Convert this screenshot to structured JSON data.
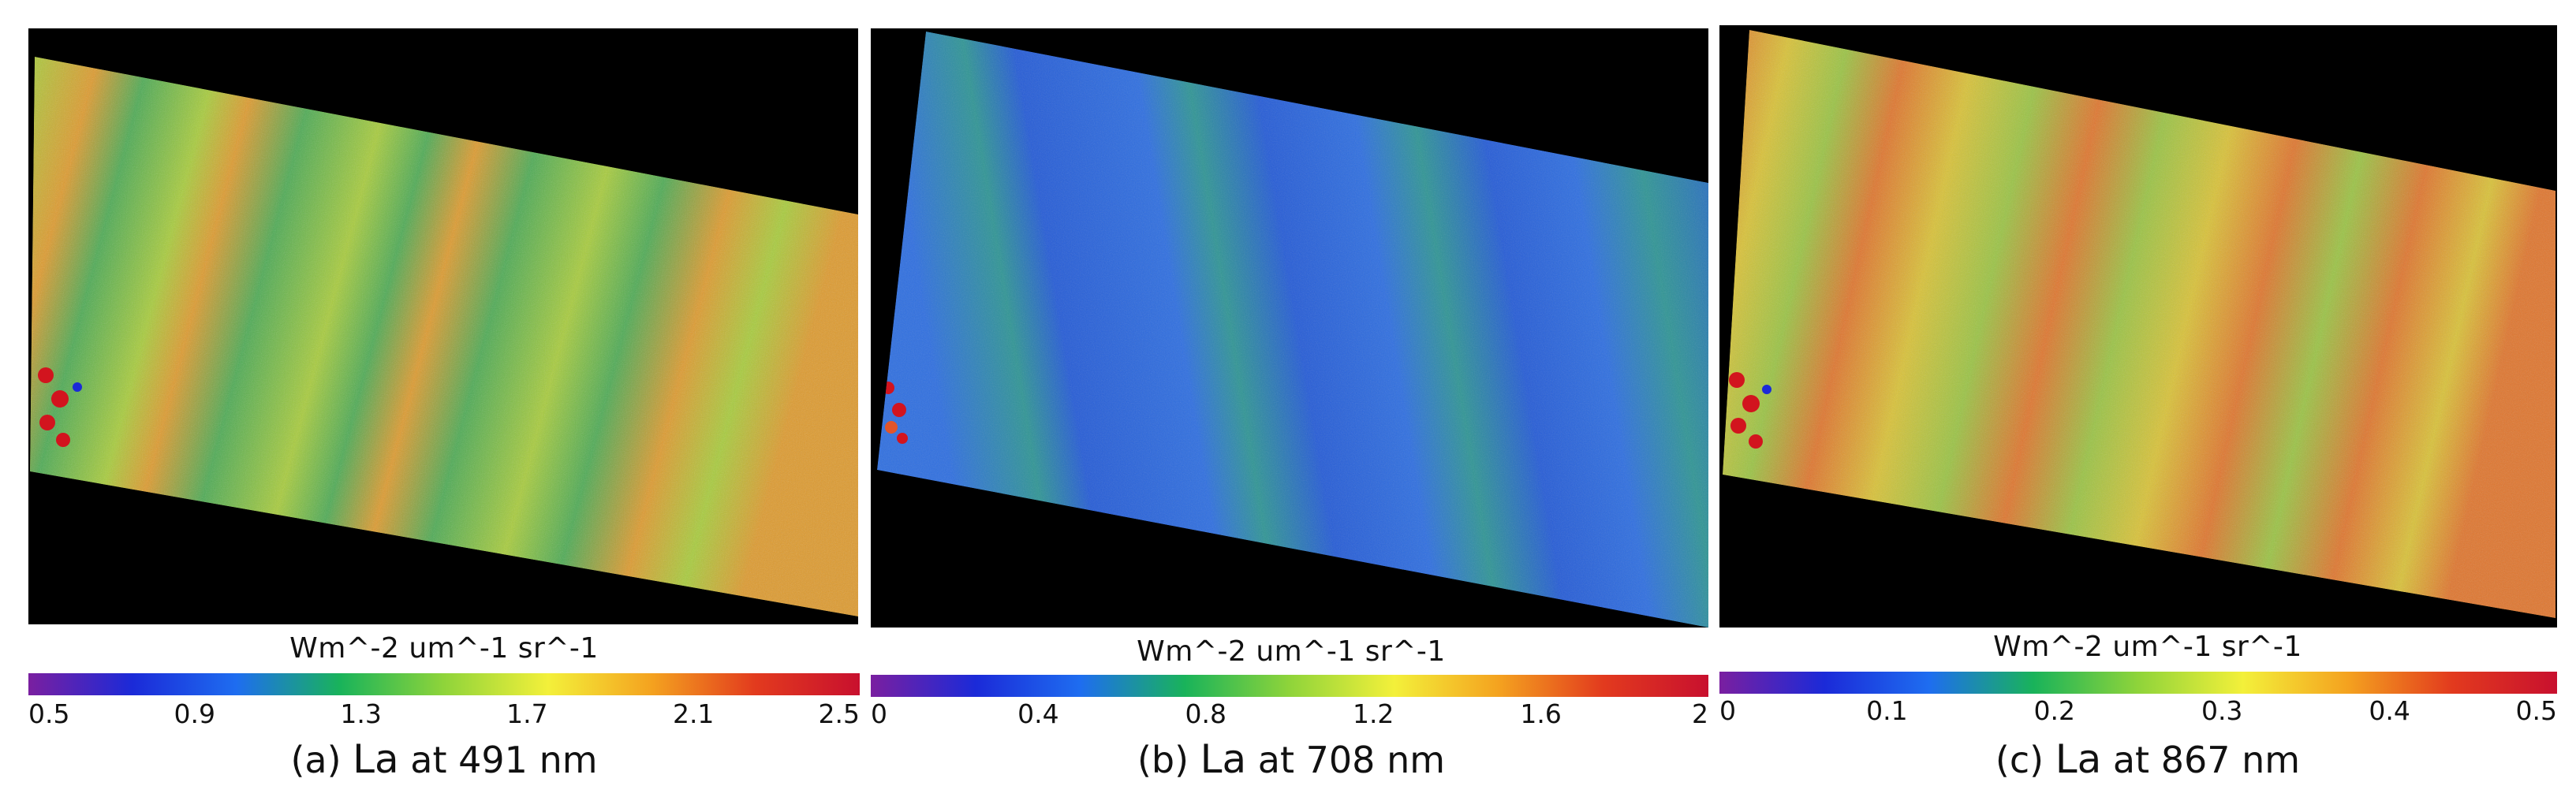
{
  "panels": [
    {
      "id": "a",
      "units": "Wm^-2 um^-1 sr^-1",
      "ticks": [
        "0.5",
        "0.9",
        "1.3",
        "1.7",
        "2.1",
        "2.5"
      ],
      "caption_prefix": "(a) ",
      "caption_symbol": "La",
      "caption_suffix": " at 491 nm",
      "base_color": "#a8cc3c",
      "stripe_dark": "#2fa05c",
      "stripe_warm": "#f08a2a"
    },
    {
      "id": "b",
      "units": "Wm^-2 um^-1 sr^-1",
      "ticks": [
        "0",
        "0.4",
        "0.8",
        "1.2",
        "1.6",
        "2"
      ],
      "caption_prefix": "(b) ",
      "caption_symbol": "La",
      "caption_suffix": " at 708 nm",
      "base_color": "#2f6fe0",
      "stripe_dark": "#1f4fd0",
      "stripe_warm": "#2fae62"
    },
    {
      "id": "c",
      "units": "Wm^-2 um^-1 sr^-1",
      "ticks": [
        "0",
        "0.1",
        "0.2",
        "0.3",
        "0.4",
        "0.5"
      ],
      "caption_prefix": "(c) ",
      "caption_symbol": "La",
      "caption_suffix": " at 867 nm",
      "base_color": "#d9c238",
      "stripe_dark": "#7fc44a",
      "stripe_warm": "#e2552a"
    }
  ],
  "colormap": [
    "#7a1fa0",
    "#1b2ad8",
    "#1e6df0",
    "#19b35a",
    "#8fd43a",
    "#f3f03a",
    "#f4a21f",
    "#e23a1e",
    "#c8102e"
  ]
}
